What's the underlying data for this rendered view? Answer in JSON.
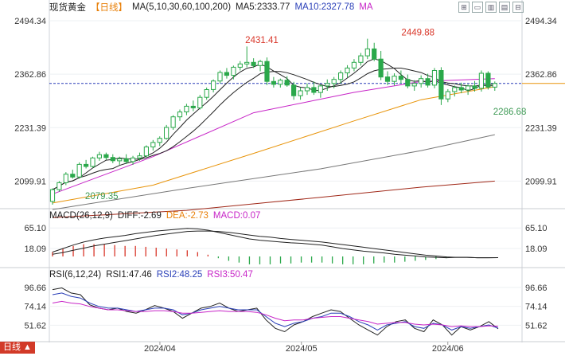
{
  "header": {
    "symbol": "现货黄金",
    "period": "【日线】",
    "ma_label": "MA(5,10,30,60,100,200)",
    "ma5": "MA5:2333.77",
    "ma10": "MA10:2327.78",
    "ma_more": "MA",
    "tools": [
      "⊞",
      "▭",
      "▥",
      "▤",
      "⊟"
    ]
  },
  "macd_header": {
    "label": "MACD(26,12,9)",
    "diff": "DIFF:-2.69",
    "dea": "DEA:-2.73",
    "macd": "MACD:0.07"
  },
  "rsi_header": {
    "label": "RSI(6,12,24)",
    "rsi1": "RSI1:47.46",
    "rsi2": "RSI2:48.25",
    "rsi3": "RSI3:50.47"
  },
  "corner_label": "日线 ▲",
  "colors": {
    "up": "#2aa84a",
    "down": "#2aa84a",
    "ma5": "#222222",
    "ma10": "#222222",
    "ma30": "#c724c7",
    "ma60": "#e8940a",
    "ma100": "#777777",
    "ma200": "#a02818",
    "hline": "#2a3fb8",
    "label_red": "#d9372a",
    "label_green": "#3e9a55"
  },
  "chart_data": [
    {
      "type": "candlestick",
      "title": "现货黄金 【日线】",
      "y_ticks": [
        "2494.34",
        "2362.86",
        "2231.39",
        "2099.91"
      ],
      "y_tick_values": [
        2494.34,
        2362.86,
        2231.39,
        2099.91
      ],
      "ylim": [
        2040,
        2510
      ],
      "x_ticks": [
        "2024/04",
        "2024/05",
        "2024/06"
      ],
      "x_tick_index": [
        22,
        51,
        81
      ],
      "current_price_line": 2340,
      "annotations": [
        {
          "text": "2431.41",
          "index": 39,
          "value": 2431.41
        },
        {
          "text": "2449.88",
          "index": 71,
          "value": 2449.88
        },
        {
          "text": "2286.68",
          "index": 91,
          "value": 2286.68
        },
        {
          "text": "2079.35",
          "index": 7,
          "value": 2079.35
        }
      ],
      "candles": [
        [
          2050,
          2082,
          2042,
          2079
        ],
        [
          2079,
          2100,
          2074,
          2096
        ],
        [
          2096,
          2122,
          2090,
          2117
        ],
        [
          2117,
          2128,
          2106,
          2110
        ],
        [
          2110,
          2146,
          2106,
          2141
        ],
        [
          2141,
          2152,
          2131,
          2136
        ],
        [
          2136,
          2160,
          2132,
          2157
        ],
        [
          2157,
          2172,
          2150,
          2165
        ],
        [
          2165,
          2170,
          2152,
          2158
        ],
        [
          2158,
          2166,
          2144,
          2150
        ],
        [
          2150,
          2160,
          2140,
          2155
        ],
        [
          2155,
          2166,
          2142,
          2148
        ],
        [
          2148,
          2162,
          2140,
          2157
        ],
        [
          2157,
          2170,
          2150,
          2162
        ],
        [
          2162,
          2188,
          2158,
          2184
        ],
        [
          2184,
          2201,
          2175,
          2195
        ],
        [
          2195,
          2210,
          2186,
          2205
        ],
        [
          2205,
          2238,
          2202,
          2232
        ],
        [
          2232,
          2262,
          2226,
          2258
        ],
        [
          2258,
          2276,
          2248,
          2270
        ],
        [
          2270,
          2290,
          2262,
          2284
        ],
        [
          2284,
          2298,
          2272,
          2280
        ],
        [
          2280,
          2312,
          2276,
          2306
        ],
        [
          2306,
          2330,
          2300,
          2325
        ],
        [
          2325,
          2350,
          2318,
          2346
        ],
        [
          2346,
          2372,
          2340,
          2367
        ],
        [
          2367,
          2378,
          2352,
          2360
        ],
        [
          2360,
          2384,
          2350,
          2380
        ],
        [
          2380,
          2395,
          2372,
          2388
        ],
        [
          2388,
          2431,
          2380,
          2392
        ],
        [
          2392,
          2402,
          2378,
          2384
        ],
        [
          2384,
          2398,
          2370,
          2394
        ],
        [
          2394,
          2404,
          2336,
          2345
        ],
        [
          2345,
          2356,
          2330,
          2338
        ],
        [
          2338,
          2352,
          2330,
          2348
        ],
        [
          2348,
          2358,
          2332,
          2336
        ],
        [
          2336,
          2344,
          2300,
          2310
        ],
        [
          2310,
          2330,
          2300,
          2322
        ],
        [
          2322,
          2340,
          2312,
          2330
        ],
        [
          2330,
          2345,
          2312,
          2318
        ],
        [
          2318,
          2338,
          2305,
          2334
        ],
        [
          2334,
          2350,
          2322,
          2340
        ],
        [
          2340,
          2356,
          2328,
          2350
        ],
        [
          2350,
          2372,
          2340,
          2366
        ],
        [
          2366,
          2385,
          2355,
          2378
        ],
        [
          2378,
          2400,
          2370,
          2392
        ],
        [
          2392,
          2415,
          2384,
          2408
        ],
        [
          2408,
          2450,
          2400,
          2425
        ],
        [
          2425,
          2440,
          2395,
          2400
        ],
        [
          2400,
          2420,
          2348,
          2356
        ],
        [
          2356,
          2370,
          2336,
          2345
        ],
        [
          2345,
          2365,
          2335,
          2358
        ],
        [
          2358,
          2372,
          2340,
          2350
        ],
        [
          2350,
          2362,
          2328,
          2334
        ],
        [
          2334,
          2348,
          2322,
          2340
        ],
        [
          2340,
          2360,
          2330,
          2352
        ],
        [
          2352,
          2364,
          2330,
          2336
        ],
        [
          2336,
          2378,
          2328,
          2372
        ],
        [
          2372,
          2380,
          2287,
          2302
        ],
        [
          2302,
          2326,
          2294,
          2320
        ],
        [
          2320,
          2335,
          2308,
          2330
        ],
        [
          2330,
          2342,
          2316,
          2324
        ],
        [
          2324,
          2338,
          2312,
          2334
        ],
        [
          2334,
          2346,
          2320,
          2328
        ],
        [
          2328,
          2372,
          2320,
          2365
        ],
        [
          2365,
          2370,
          2325,
          2331
        ],
        [
          2331,
          2345,
          2322,
          2340
        ]
      ],
      "ma_series": [
        {
          "name": "MA30",
          "start": [
            0,
            2068
          ],
          "points": [
            [
              15,
              2160
            ],
            [
              30,
              2268
            ],
            [
              45,
              2318
            ],
            [
              55,
              2345
            ],
            [
              66,
              2352
            ]
          ]
        },
        {
          "name": "MA60",
          "start": [
            0,
            2046
          ],
          "points": [
            [
              15,
              2090
            ],
            [
              30,
              2168
            ],
            [
              45,
              2248
            ],
            [
              55,
              2300
            ],
            [
              66,
              2332
            ]
          ]
        },
        {
          "name": "MA100",
          "start": [
            0,
            2030
          ],
          "points": [
            [
              20,
              2082
            ],
            [
              40,
              2130
            ],
            [
              55,
              2175
            ],
            [
              66,
              2214
            ]
          ]
        },
        {
          "name": "MA200",
          "start": [
            0,
            2010
          ],
          "points": [
            [
              20,
              2028
            ],
            [
              40,
              2060
            ],
            [
              55,
              2085
            ],
            [
              66,
              2100
            ]
          ]
        }
      ]
    },
    {
      "type": "line",
      "title": "MACD(26,12,9)",
      "y_ticks": [
        "65.10",
        "18.09"
      ],
      "y_tick_values": [
        65.1,
        18.09
      ],
      "ylim": [
        -20,
        80
      ],
      "series": [
        {
          "name": "DIFF",
          "values": [
            10,
            18,
            26,
            33,
            38,
            42,
            45,
            48,
            52,
            55,
            58,
            60,
            62,
            64,
            63,
            60,
            55,
            50,
            45,
            40,
            37,
            35,
            33,
            31,
            30,
            28,
            26,
            22,
            18,
            15,
            12,
            10,
            8,
            5,
            3,
            1,
            -1,
            -2,
            -3,
            -2,
            -2,
            -3,
            -3,
            -2.69
          ]
        },
        {
          "name": "DEA",
          "values": [
            5,
            9,
            14,
            19,
            24,
            28,
            32,
            36,
            40,
            44,
            48,
            51,
            54,
            57,
            58,
            58,
            57,
            55,
            52,
            49,
            46,
            44,
            41,
            39,
            37,
            35,
            33,
            30,
            27,
            24,
            21,
            18,
            15,
            12,
            9,
            6,
            3,
            1,
            -1,
            -2,
            -2,
            -3,
            -3,
            -2.73
          ]
        },
        {
          "name": "MACD",
          "values": [
            10,
            18,
            24,
            28,
            28,
            28,
            26,
            24,
            24,
            22,
            20,
            18,
            16,
            14,
            10,
            4,
            -4,
            -10,
            -14,
            -18,
            -18,
            -18,
            -16,
            -16,
            -14,
            -14,
            -14,
            -16,
            -18,
            -18,
            -18,
            -16,
            -14,
            -14,
            -12,
            -10,
            -8,
            -6,
            -4,
            0,
            0,
            0,
            0,
            0.07
          ]
        }
      ]
    },
    {
      "type": "line",
      "title": "RSI(6,12,24)",
      "y_ticks": [
        "96.66",
        "74.14",
        "51.62"
      ],
      "y_tick_values": [
        96.66,
        74.14,
        51.62
      ],
      "ylim": [
        35,
        105
      ],
      "series": [
        {
          "name": "RSI1",
          "values": [
            94,
            96,
            90,
            88,
            76,
            72,
            70,
            72,
            68,
            66,
            70,
            75,
            72,
            68,
            60,
            66,
            72,
            74,
            78,
            72,
            68,
            70,
            72,
            58,
            48,
            44,
            52,
            56,
            62,
            66,
            70,
            68,
            60,
            52,
            46,
            40,
            50,
            56,
            58,
            48,
            44,
            58,
            52,
            40,
            50,
            46,
            50,
            56,
            47.46
          ]
        },
        {
          "name": "RSI2",
          "values": [
            88,
            90,
            86,
            84,
            78,
            74,
            72,
            72,
            70,
            68,
            70,
            72,
            72,
            70,
            64,
            66,
            70,
            72,
            74,
            72,
            70,
            70,
            70,
            62,
            54,
            50,
            54,
            56,
            60,
            62,
            66,
            66,
            62,
            56,
            52,
            46,
            52,
            54,
            56,
            50,
            48,
            54,
            52,
            46,
            50,
            48,
            50,
            52,
            48.25
          ]
        },
        {
          "name": "RSI3",
          "values": [
            78,
            80,
            78,
            77,
            74,
            72,
            70,
            70,
            69,
            68,
            68,
            69,
            69,
            68,
            66,
            66,
            67,
            68,
            69,
            68,
            68,
            68,
            67,
            64,
            60,
            57,
            58,
            58,
            60,
            61,
            62,
            62,
            60,
            58,
            56,
            53,
            54,
            55,
            55,
            53,
            52,
            53,
            52,
            50,
            51,
            50,
            50,
            51,
            50.47
          ]
        }
      ]
    }
  ]
}
